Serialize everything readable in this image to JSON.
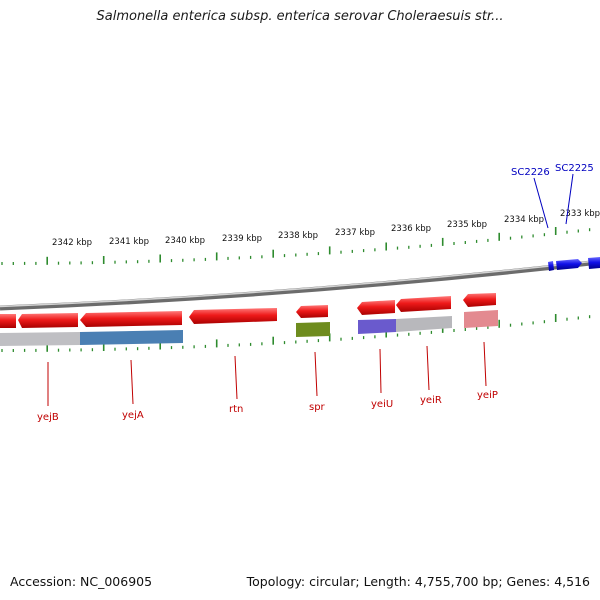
{
  "title": "Salmonella enterica subsp. enterica serovar Choleraesuis str...",
  "footer": {
    "accession": "Accession: NC_006905",
    "summary": "Topology: circular; Length: 4,755,700 bp; Genes: 4,516"
  },
  "colors": {
    "backbone": "#8c8c8c",
    "tick": "#2e8b2e",
    "gene_red": "#e8141e",
    "gene_blue": "#1010e0",
    "label_red": "#c00000",
    "label_blue": "#0000c0",
    "cog_gray": "#b8b8bc",
    "cog_steel": "#4f86b8",
    "cog_olive": "#6e8c1e",
    "cog_purple": "#6a5acd",
    "cog_pink": "#e38a90"
  },
  "scale_labels": [
    "2342 kbp",
    "2341 kbp",
    "2340 kbp",
    "2339 kbp",
    "2338 kbp",
    "2337 kbp",
    "2336 kbp",
    "2335 kbp",
    "2334 kbp",
    "2333 kbp"
  ],
  "genes": {
    "forward_labels": [
      "SC2226",
      "SC2225"
    ],
    "reverse_labels": [
      "yejB",
      "yejA",
      "rtn",
      "spr",
      "yeiU",
      "yeiR",
      "yeiP"
    ]
  }
}
